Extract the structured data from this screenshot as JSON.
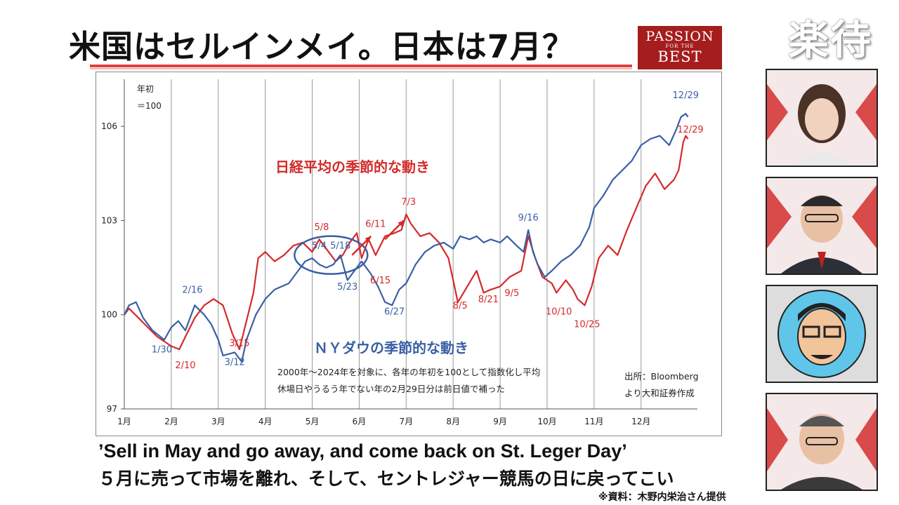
{
  "header": {
    "title": "米国はセルインメイ。日本は7月？",
    "logo_line1": "PASSION",
    "logo_line2": "FOR THE",
    "logo_line3": "BEST",
    "program_name": "楽待"
  },
  "chart_data": {
    "type": "line",
    "title": "",
    "ylabel": "年初",
    "ylabel2": "＝100",
    "xlabel": "",
    "ylim": [
      97,
      107.5
    ],
    "yticks": [
      97,
      100,
      103,
      106
    ],
    "xlim": [
      1,
      13.2
    ],
    "months": [
      {
        "label": "1月",
        "x": 1
      },
      {
        "label": "2月",
        "x": 2
      },
      {
        "label": "3月",
        "x": 3
      },
      {
        "label": "4月",
        "x": 4
      },
      {
        "label": "5月",
        "x": 5
      },
      {
        "label": "6月",
        "x": 6
      },
      {
        "label": "7月",
        "x": 7
      },
      {
        "label": "8月",
        "x": 8
      },
      {
        "label": "9月",
        "x": 9
      },
      {
        "label": "10月",
        "x": 10
      },
      {
        "label": "11月",
        "x": 11
      },
      {
        "label": "12月",
        "x": 12
      }
    ],
    "grid": "vertical-month-lines",
    "series": [
      {
        "name": "日経平均の季節的な動き",
        "color": "#d42a2a",
        "points": [
          [
            1,
            100.0
          ],
          [
            1.1,
            100.2
          ],
          [
            1.3,
            99.9
          ],
          [
            1.5,
            99.6
          ],
          [
            1.7,
            99.3
          ],
          [
            2.0,
            99.0
          ],
          [
            2.17,
            98.9
          ],
          [
            2.3,
            99.3
          ],
          [
            2.5,
            99.9
          ],
          [
            2.7,
            100.3
          ],
          [
            2.9,
            100.5
          ],
          [
            3.1,
            100.3
          ],
          [
            3.3,
            99.4
          ],
          [
            3.45,
            98.9
          ],
          [
            3.6,
            99.8
          ],
          [
            3.75,
            100.7
          ],
          [
            3.85,
            101.8
          ],
          [
            4.0,
            102.0
          ],
          [
            4.2,
            101.7
          ],
          [
            4.4,
            101.9
          ],
          [
            4.6,
            102.2
          ],
          [
            4.8,
            102.3
          ],
          [
            5.0,
            102.0
          ],
          [
            5.15,
            102.4
          ],
          [
            5.3,
            102.1
          ],
          [
            5.5,
            101.7
          ],
          [
            5.65,
            101.9
          ],
          [
            5.8,
            102.3
          ],
          [
            5.95,
            102.6
          ],
          [
            6.05,
            101.8
          ],
          [
            6.2,
            102.4
          ],
          [
            6.35,
            101.9
          ],
          [
            6.55,
            102.5
          ],
          [
            6.75,
            102.6
          ],
          [
            6.9,
            102.7
          ],
          [
            7.0,
            103.2
          ],
          [
            7.1,
            102.9
          ],
          [
            7.3,
            102.5
          ],
          [
            7.5,
            102.6
          ],
          [
            7.7,
            102.3
          ],
          [
            7.9,
            101.8
          ],
          [
            8.0,
            101.1
          ],
          [
            8.1,
            100.4
          ],
          [
            8.3,
            100.9
          ],
          [
            8.5,
            101.4
          ],
          [
            8.65,
            100.7
          ],
          [
            8.8,
            100.8
          ],
          [
            9.0,
            100.9
          ],
          [
            9.2,
            101.2
          ],
          [
            9.45,
            101.4
          ],
          [
            9.6,
            102.5
          ],
          [
            9.75,
            101.8
          ],
          [
            9.9,
            101.2
          ],
          [
            10.1,
            101.0
          ],
          [
            10.2,
            100.7
          ],
          [
            10.4,
            101.1
          ],
          [
            10.55,
            100.8
          ],
          [
            10.65,
            100.5
          ],
          [
            10.8,
            100.3
          ],
          [
            10.95,
            100.9
          ],
          [
            11.1,
            101.8
          ],
          [
            11.3,
            102.2
          ],
          [
            11.5,
            101.9
          ],
          [
            11.7,
            102.7
          ],
          [
            11.9,
            103.4
          ],
          [
            12.1,
            104.1
          ],
          [
            12.3,
            104.5
          ],
          [
            12.5,
            104.0
          ],
          [
            12.7,
            104.3
          ],
          [
            12.8,
            104.6
          ],
          [
            12.9,
            105.5
          ],
          [
            12.95,
            105.7
          ],
          [
            13.0,
            105.6
          ]
        ]
      },
      {
        "name": "ＮＹダウの季節的な動き",
        "color": "#3a5fa5",
        "points": [
          [
            1,
            100.0
          ],
          [
            1.1,
            100.3
          ],
          [
            1.25,
            100.4
          ],
          [
            1.4,
            99.9
          ],
          [
            1.6,
            99.5
          ],
          [
            1.85,
            99.2
          ],
          [
            2.0,
            99.6
          ],
          [
            2.15,
            99.8
          ],
          [
            2.3,
            99.5
          ],
          [
            2.5,
            100.3
          ],
          [
            2.7,
            100.0
          ],
          [
            2.85,
            99.7
          ],
          [
            3.0,
            99.2
          ],
          [
            3.1,
            98.7
          ],
          [
            3.35,
            98.8
          ],
          [
            3.5,
            98.5
          ],
          [
            3.6,
            99.2
          ],
          [
            3.8,
            100.0
          ],
          [
            4.0,
            100.5
          ],
          [
            4.2,
            100.8
          ],
          [
            4.5,
            101.0
          ],
          [
            4.7,
            101.4
          ],
          [
            4.85,
            101.7
          ],
          [
            5.0,
            101.8
          ],
          [
            5.15,
            101.6
          ],
          [
            5.3,
            101.5
          ],
          [
            5.45,
            101.6
          ],
          [
            5.6,
            101.9
          ],
          [
            5.75,
            101.1
          ],
          [
            5.9,
            101.4
          ],
          [
            6.05,
            101.7
          ],
          [
            6.25,
            101.3
          ],
          [
            6.4,
            100.9
          ],
          [
            6.55,
            100.4
          ],
          [
            6.7,
            100.3
          ],
          [
            6.85,
            100.8
          ],
          [
            7.0,
            101.0
          ],
          [
            7.2,
            101.6
          ],
          [
            7.4,
            102.0
          ],
          [
            7.6,
            102.2
          ],
          [
            7.8,
            102.3
          ],
          [
            8.0,
            102.1
          ],
          [
            8.15,
            102.5
          ],
          [
            8.35,
            102.4
          ],
          [
            8.5,
            102.5
          ],
          [
            8.65,
            102.3
          ],
          [
            8.8,
            102.4
          ],
          [
            9.0,
            102.3
          ],
          [
            9.15,
            102.5
          ],
          [
            9.35,
            102.2
          ],
          [
            9.5,
            102.0
          ],
          [
            9.6,
            102.7
          ],
          [
            9.7,
            102.0
          ],
          [
            9.8,
            101.6
          ],
          [
            9.95,
            101.2
          ],
          [
            10.1,
            101.4
          ],
          [
            10.3,
            101.7
          ],
          [
            10.5,
            101.9
          ],
          [
            10.7,
            102.2
          ],
          [
            10.9,
            102.8
          ],
          [
            11.0,
            103.4
          ],
          [
            11.2,
            103.8
          ],
          [
            11.4,
            104.3
          ],
          [
            11.6,
            104.6
          ],
          [
            11.8,
            104.9
          ],
          [
            12.0,
            105.4
          ],
          [
            12.2,
            105.6
          ],
          [
            12.4,
            105.7
          ],
          [
            12.6,
            105.4
          ],
          [
            12.75,
            105.9
          ],
          [
            12.85,
            106.3
          ],
          [
            12.95,
            106.4
          ],
          [
            13.0,
            106.3
          ]
        ]
      }
    ],
    "annotations": [
      {
        "text": "1/30",
        "x": 1.8,
        "y": 98.8,
        "color": "#3a5fa5"
      },
      {
        "text": "2/10",
        "x": 2.3,
        "y": 98.3,
        "color": "#d42a2a"
      },
      {
        "text": "2/16",
        "x": 2.45,
        "y": 100.7,
        "color": "#3a5fa5"
      },
      {
        "text": "3/15",
        "x": 3.45,
        "y": 99.0,
        "color": "#d42a2a"
      },
      {
        "text": "3/12",
        "x": 3.35,
        "y": 98.4,
        "color": "#3a5fa5"
      },
      {
        "text": "5/8",
        "x": 5.2,
        "y": 102.7,
        "color": "#d42a2a"
      },
      {
        "text": "5/4",
        "x": 5.15,
        "y": 102.1,
        "color": "#3a5fa5"
      },
      {
        "text": "5/18",
        "x": 5.6,
        "y": 102.1,
        "color": "#3a5fa5"
      },
      {
        "text": "5/23",
        "x": 5.75,
        "y": 100.8,
        "color": "#3a5fa5"
      },
      {
        "text": "6/11",
        "x": 6.35,
        "y": 102.8,
        "color": "#d42a2a"
      },
      {
        "text": "6/15",
        "x": 6.45,
        "y": 101.0,
        "color": "#d42a2a"
      },
      {
        "text": "6/27",
        "x": 6.75,
        "y": 100.0,
        "color": "#3a5fa5"
      },
      {
        "text": "7/3",
        "x": 7.05,
        "y": 103.5,
        "color": "#d42a2a"
      },
      {
        "text": "8/5",
        "x": 8.15,
        "y": 100.2,
        "color": "#d42a2a"
      },
      {
        "text": "8/21",
        "x": 8.75,
        "y": 100.4,
        "color": "#d42a2a"
      },
      {
        "text": "9/5",
        "x": 9.25,
        "y": 100.6,
        "color": "#d42a2a"
      },
      {
        "text": "9/16",
        "x": 9.6,
        "y": 103.0,
        "color": "#3a5fa5"
      },
      {
        "text": "10/10",
        "x": 10.25,
        "y": 100.0,
        "color": "#d42a2a"
      },
      {
        "text": "10/25",
        "x": 10.85,
        "y": 99.6,
        "color": "#d42a2a"
      },
      {
        "text": "12/29",
        "x": 12.95,
        "y": 106.9,
        "color": "#3a5fa5"
      },
      {
        "text": "12/29",
        "x": 13.05,
        "y": 105.8,
        "color": "#d42a2a"
      }
    ],
    "series_labels": [
      {
        "text": "日経平均の季節的な動き",
        "color": "#d42a2a"
      },
      {
        "text": "ＮＹダウの季節的な動き",
        "color": "#3a5fa5"
      }
    ],
    "notes": [
      "2000年〜2024年を対象に、各年の年初を100として指数化し平均",
      "休場日やうるう年でない年の2月29日分は前日値で補った"
    ],
    "source_lines": [
      "出所：Bloomberg",
      "より大和証券作成"
    ]
  },
  "footer": {
    "quote": "’Sell in May and go away, and come back on St. Leger Day’",
    "translation": "５月に売って市場を離れ、そして、セントレジャー競馬の日に戻ってこい",
    "credit": "※資料：木野内栄治さん提供"
  },
  "colors": {
    "accent_red": "#e0413f",
    "logo_bg": "#a51d1d",
    "nikkei": "#d42a2a",
    "dow": "#3a5fa5"
  }
}
